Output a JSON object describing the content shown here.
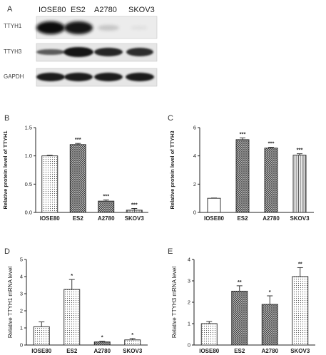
{
  "blot": {
    "panel_label": "A",
    "lanes": [
      "IOSE80",
      "ES2",
      "A2780",
      "SKOV3"
    ],
    "rows": [
      "TTYH1",
      "TTYH3",
      "GAPDH"
    ]
  },
  "chart_data": [
    {
      "panel": "B",
      "type": "bar",
      "categories": [
        "IOSE80",
        "ES2",
        "A2780",
        "SKOV3"
      ],
      "values": [
        1.0,
        1.2,
        0.2,
        0.04
      ],
      "errors": [
        0.01,
        0.02,
        0.02,
        0.03
      ],
      "significance": [
        "",
        "***",
        "***",
        "***"
      ],
      "ylabel": "Relative protein level of TTYH1",
      "ylim": [
        0,
        1.5
      ],
      "yticks": [
        "0.0",
        "0.5",
        "1.0",
        "1.5"
      ],
      "patterns": [
        "dots",
        "crosshatch",
        "crosshatch",
        "vlines"
      ]
    },
    {
      "panel": "C",
      "type": "bar",
      "categories": [
        "IOSE80",
        "ES2",
        "A2780",
        "SKOV3"
      ],
      "values": [
        1.0,
        5.15,
        4.55,
        4.05
      ],
      "errors": [
        0.02,
        0.12,
        0.06,
        0.1
      ],
      "significance": [
        "",
        "***",
        "***",
        "***"
      ],
      "ylabel": "Relative protein level of TTYH3",
      "ylim": [
        0,
        6
      ],
      "yticks": [
        "0",
        "2",
        "4",
        "6"
      ],
      "patterns": [
        "white",
        "crosshatch",
        "crosshatch",
        "vlines"
      ]
    },
    {
      "panel": "D",
      "type": "bar",
      "categories": [
        "IOSE80",
        "ES2",
        "A2780",
        "SKOV3"
      ],
      "values": [
        1.07,
        3.25,
        0.18,
        0.3
      ],
      "errors": [
        0.28,
        0.58,
        0.04,
        0.08
      ],
      "significance": [
        "",
        "*",
        "*",
        "*"
      ],
      "ylabel": "Relative TTYH1 mRNA level",
      "ylim": [
        0,
        5
      ],
      "yticks": [
        "0",
        "1",
        "2",
        "3",
        "4",
        "5"
      ],
      "patterns": [
        "dots",
        "dots",
        "crosshatch",
        "dots"
      ]
    },
    {
      "panel": "E",
      "type": "bar",
      "categories": [
        "IOSE80",
        "ES2",
        "A2780",
        "SKOV3"
      ],
      "values": [
        1.0,
        2.52,
        1.9,
        3.2
      ],
      "errors": [
        0.1,
        0.25,
        0.4,
        0.42
      ],
      "significance": [
        "",
        "**",
        "*",
        "**"
      ],
      "ylabel": "Relative TTYH3 mRNA level",
      "ylim": [
        0,
        4
      ],
      "yticks": [
        "0",
        "1",
        "2",
        "3",
        "4"
      ],
      "patterns": [
        "dots",
        "crosshatch",
        "crosshatch",
        "dots"
      ]
    }
  ]
}
